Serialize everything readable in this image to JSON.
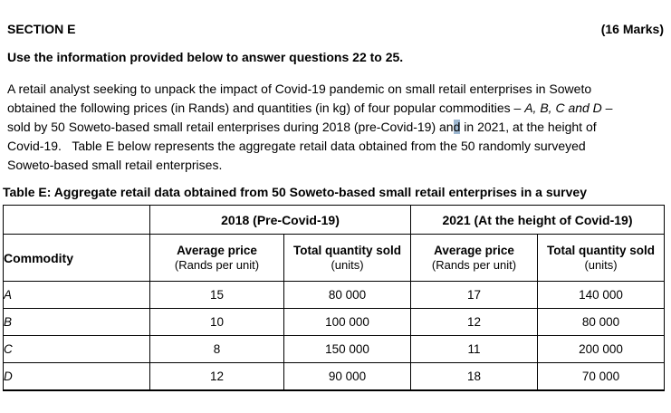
{
  "page": {
    "section_title": "SECTION E",
    "marks": "(16 Marks)",
    "instruction": "Use the information provided below to answer questions 22 to 25."
  },
  "colors": {
    "selection_highlight": "#9db7d1",
    "text": "#000000",
    "background": "#ffffff"
  },
  "paragraph": {
    "lines": [
      [
        {
          "t": "A retail analyst seeking to unpack the impact of Covid-19 pandemic on small retail enterprises in Soweto"
        }
      ],
      [
        {
          "t": "obtained the following prices (in Rands) and quantities (in kg) of four popular commodities – "
        },
        {
          "t": "A, B, C and D",
          "i": true
        },
        {
          "t": " –"
        }
      ],
      [
        {
          "t": "sold by 50 Soweto-based small retail enterprises during 2018 (pre-Covid-19) an"
        },
        {
          "t": "d",
          "h": true
        },
        {
          "t": " in 2021, at the height of"
        }
      ],
      [
        {
          "t": "Covid-19.   Table E below represents the aggregate retail data obtained from the 50 randomly surveyed"
        }
      ],
      [
        {
          "t": "Soweto-based small retail enterprises."
        }
      ]
    ]
  },
  "table": {
    "caption": "Table E: Aggregate retail data obtained from 50 Soweto-based small retail enterprises in a survey",
    "col_groups": {
      "g2018": "2018 (Pre-Covid-19)",
      "g2021": "2021 (At the height of Covid-19)"
    },
    "headers": {
      "commodity": "Commodity",
      "avg_price_title": "Average price",
      "avg_price_sub": "(Rands per unit)",
      "qty_title": "Total quantity sold",
      "qty_sub": "(units)"
    },
    "rows": [
      {
        "commodity": "A",
        "price_2018": "15",
        "qty_2018": "80 000",
        "price_2021": "17",
        "qty_2021": "140 000"
      },
      {
        "commodity": "B",
        "price_2018": "10",
        "qty_2018": "100 000",
        "price_2021": "12",
        "qty_2021": "80 000"
      },
      {
        "commodity": "C",
        "price_2018": "8",
        "qty_2018": "150 000",
        "price_2021": "11",
        "qty_2021": "200 000"
      },
      {
        "commodity": "D",
        "price_2018": "12",
        "qty_2018": "90 000",
        "price_2021": "18",
        "qty_2021": "70 000"
      }
    ]
  }
}
